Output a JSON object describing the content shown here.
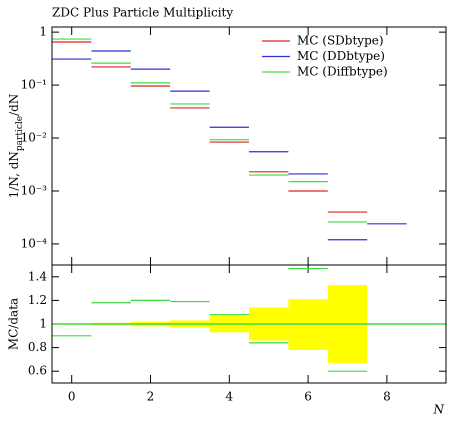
{
  "chart_data": [
    {
      "type": "step",
      "title": "ZDC Plus Particle Multiplicity",
      "ylabel": "1/N, dN",
      "ylabel_sub": "particle",
      "ylabel_end": "/dN",
      "log_y": true,
      "legend": "top-right",
      "x": [
        0,
        1,
        2,
        3,
        4,
        5,
        6,
        7,
        8
      ],
      "xlim": [
        -0.5,
        9.5
      ],
      "ylim": [
        4e-05,
        1.25
      ],
      "yticks": [
        {
          "value": 0.0001,
          "label": "10⁻⁴"
        },
        {
          "value": 0.001,
          "label": "10⁻³"
        },
        {
          "value": 0.01,
          "label": "10⁻²"
        },
        {
          "value": 0.1,
          "label": "10⁻¹"
        },
        1
      ],
      "series": [
        {
          "name": "MC (SDbtype)",
          "color": "#e0261f",
          "values": [
            0.65,
            0.22,
            0.096,
            0.037,
            0.0084,
            0.0023,
            0.001,
            0.0004,
            null
          ]
        },
        {
          "name": "MC (DDbtype)",
          "color": "#2f2fd8",
          "values": [
            0.31,
            0.44,
            0.2,
            0.077,
            0.016,
            0.0055,
            0.0021,
            0.00012,
            0.00024
          ]
        },
        {
          "name": "MC (Diffbtype)",
          "color": "#3ddc3d",
          "values": [
            0.74,
            0.26,
            0.11,
            0.044,
            0.0093,
            0.002,
            0.0015,
            0.00026,
            null
          ]
        }
      ]
    },
    {
      "type": "step",
      "ylabel": "MC/data",
      "xlabel": "N",
      "x": [
        0,
        1,
        2,
        3,
        4,
        5,
        6,
        7
      ],
      "xlim": [
        -0.5,
        9.5
      ],
      "ylim": [
        0.5,
        1.5
      ],
      "xticks": [
        0,
        2,
        4,
        6,
        8
      ],
      "yticks": [
        0.6,
        0.8,
        1,
        1.2,
        1.4
      ],
      "reference": 1,
      "band": {
        "color": "#ffff00",
        "upper": [
          1.005,
          1.01,
          1.02,
          1.03,
          1.07,
          1.14,
          1.21,
          1.33
        ],
        "lower": [
          0.995,
          0.99,
          0.98,
          0.97,
          0.93,
          0.86,
          0.78,
          0.67
        ]
      },
      "series": [
        {
          "name": "MC (Diffbtype)",
          "color": "#3ddc3d",
          "values": [
            0.9,
            1.18,
            1.2,
            1.19,
            1.08,
            0.84,
            1.47,
            0.6
          ]
        }
      ]
    }
  ]
}
